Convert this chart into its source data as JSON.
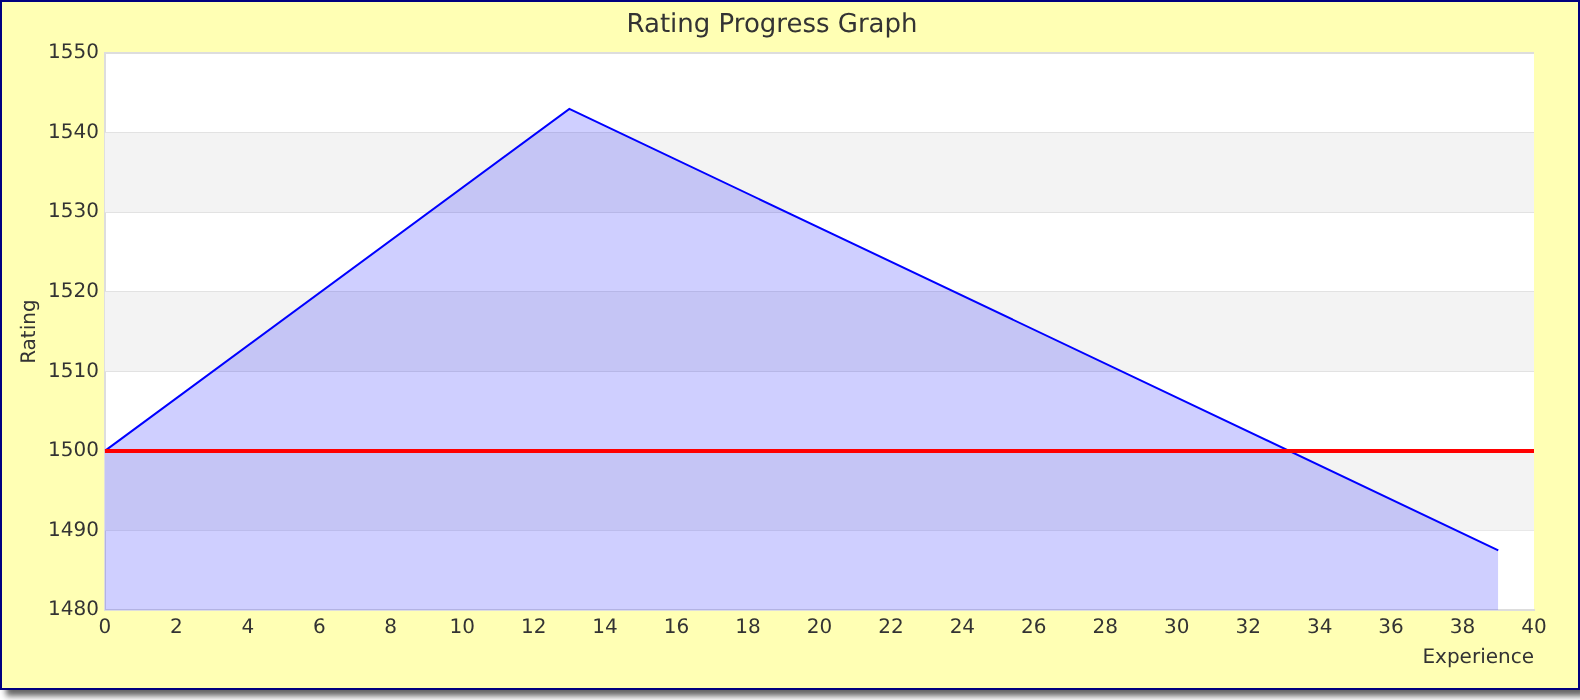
{
  "chart_data": {
    "type": "area",
    "title": "Rating Progress Graph",
    "xlabel": "Experience",
    "ylabel": "Rating",
    "x": [
      0,
      13,
      39
    ],
    "series": [
      {
        "color": "#0000ff",
        "values": [
          1500,
          1543,
          1487.5
        ]
      }
    ],
    "xlim": [
      0,
      40
    ],
    "xticks": [
      0,
      2,
      4,
      6,
      8,
      10,
      12,
      14,
      16,
      18,
      20,
      22,
      24,
      26,
      28,
      30,
      32,
      34,
      36,
      38,
      40
    ],
    "ylim": [
      1480,
      1550
    ],
    "yticks": [
      1480,
      1490,
      1500,
      1510,
      1520,
      1530,
      1540,
      1550
    ],
    "ref_lines": [
      {
        "axis": "y",
        "value": 1500,
        "color": "#ff0000"
      }
    ],
    "grid": "y",
    "legend": false,
    "marker": "none"
  }
}
